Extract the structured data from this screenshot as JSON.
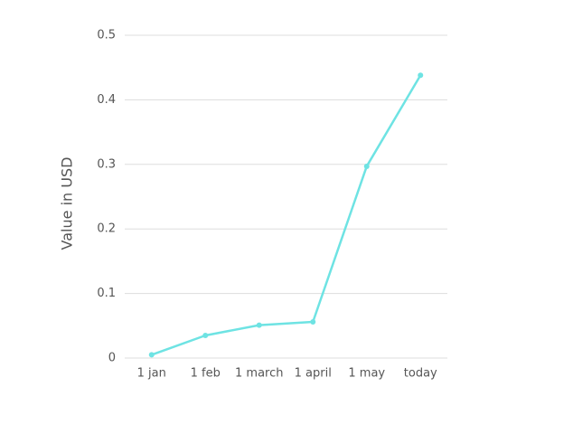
{
  "chart_data": {
    "type": "line",
    "ylabel": "Value in USD",
    "categories": [
      "1 jan",
      "1 feb",
      "1 march",
      "1 april",
      "1 may",
      "today"
    ],
    "values": [
      0.005,
      0.035,
      0.051,
      0.056,
      0.297,
      0.438
    ],
    "color": "#6ee3e3",
    "ylim": [
      0,
      0.5
    ],
    "yticks": [
      0,
      0.1,
      0.2,
      0.3,
      0.4,
      0.5
    ],
    "grid": true
  }
}
